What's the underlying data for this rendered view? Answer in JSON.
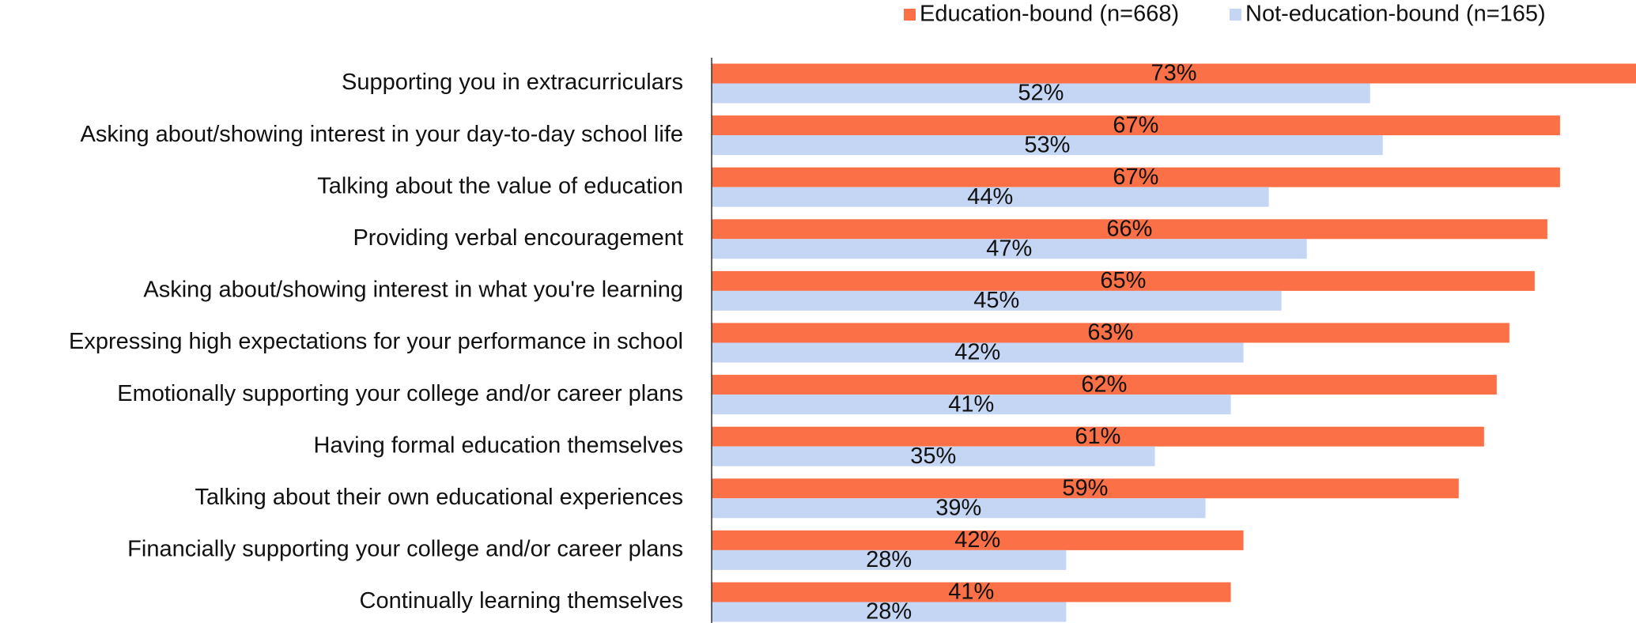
{
  "chart_data": {
    "type": "barh",
    "categories": [
      "Supporting you in extracurriculars",
      "Asking about/showing interest in your day-to-day school life",
      "Talking about the value of education",
      "Providing verbal encouragement",
      "Asking about/showing interest in what you're learning",
      "Expressing high expectations for your performance in school",
      "Emotionally supporting your college and/or career plans",
      "Having formal education themselves",
      "Talking about their own educational experiences",
      "Financially supporting your college and/or career plans",
      "Continually learning themselves"
    ],
    "series": [
      {
        "name": "Education-bound (n=668)",
        "color": "#fb7046",
        "values": [
          73,
          67,
          67,
          66,
          65,
          63,
          62,
          61,
          59,
          42,
          41
        ],
        "value_labels": [
          "73%",
          "67%",
          "67%",
          "66%",
          "65%",
          "63%",
          "62%",
          "61%",
          "59%",
          "42%",
          "41%"
        ]
      },
      {
        "name": "Not-education-bound (n=165)",
        "color": "#c5d6f4",
        "values": [
          52,
          53,
          44,
          47,
          45,
          42,
          41,
          35,
          39,
          28,
          28
        ],
        "value_labels": [
          "52%",
          "53%",
          "44%",
          "47%",
          "45%",
          "42%",
          "41%",
          "35%",
          "39%",
          "28%",
          "28%"
        ]
      }
    ],
    "xlim": [
      0,
      73
    ],
    "legend": "top-right"
  }
}
